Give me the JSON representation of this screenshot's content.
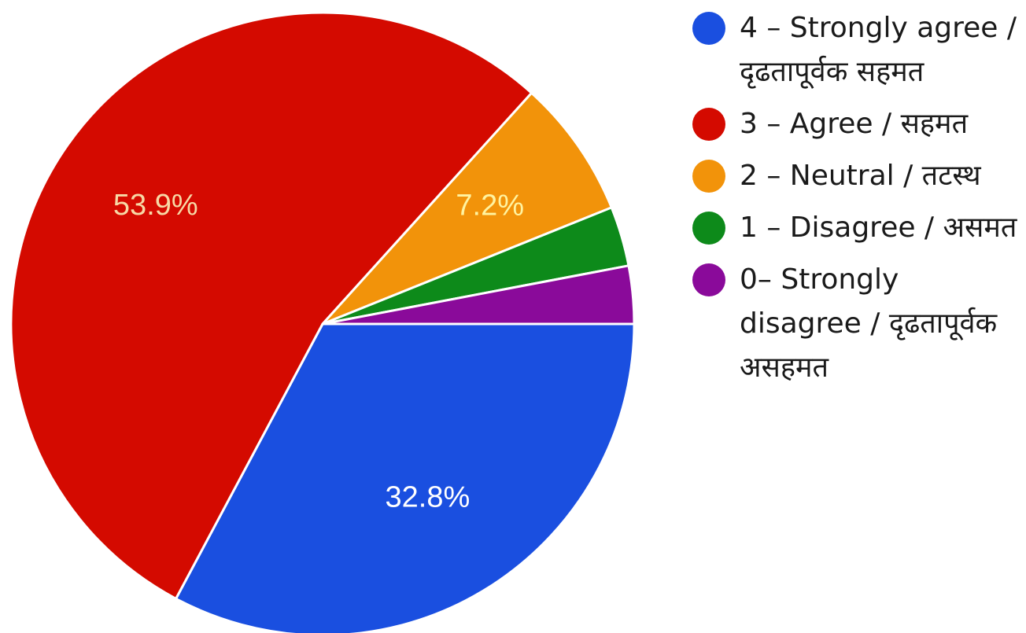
{
  "chart_data": {
    "type": "pie",
    "series": [
      {
        "name": "4 – Strongly agree / दृढतापूर्वक सहमत",
        "value": 32.8,
        "color": "#1a4fe0",
        "label": "32.8%"
      },
      {
        "name": "3 – Agree / सहमत",
        "value": 53.9,
        "color": "#d40a00",
        "label": "53.9%"
      },
      {
        "name": "2 – Neutral / तटस्थ",
        "value": 7.2,
        "color": "#f2930a",
        "label": "7.2%"
      },
      {
        "name": "1 – Disagree / असमत",
        "value": 3.1,
        "color": "#0d8a1a",
        "label": ""
      },
      {
        "name": "0– Strongly disagree / दृढतापूर्वक असहमत",
        "value": 3.0,
        "color": "#8a0a9a",
        "label": ""
      }
    ],
    "start_angle_deg": 0,
    "direction": "clockwise",
    "legend_position": "right",
    "label_colors": {
      "4 – Strongly agree / दृढतापूर्वक सहमत": "#ffffff",
      "3 – Agree / सहमत": "#f7d9a6",
      "2 – Neutral / तटस्थ": "#fff3a0"
    }
  }
}
